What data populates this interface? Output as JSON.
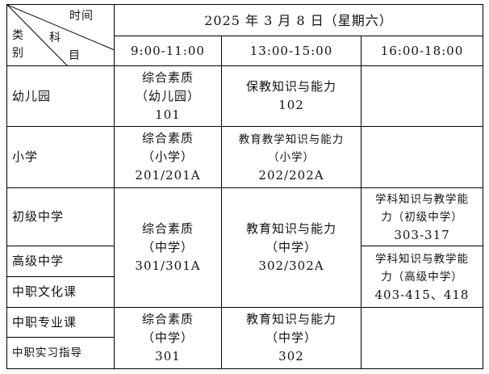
{
  "corner": {
    "time": "时间",
    "subject_1": "科",
    "subject_2": "目",
    "category_1": "类",
    "category_2": "别"
  },
  "date": "2025 年 3 月 8 日（星期六）",
  "slots": [
    "9:00-11:00",
    "13:00-15:00",
    "16:00-18:00"
  ],
  "categories": [
    "幼儿园",
    "小学",
    "初级中学",
    "高级中学",
    "中职文化课",
    "中职专业课",
    "中职实习指导"
  ],
  "cells": {
    "kg_1": [
      "综合素质",
      "（幼儿园）",
      "101"
    ],
    "kg_2": [
      "保教知识与能力",
      "102"
    ],
    "pri_1": [
      "综合素质",
      "（小学）",
      "201/201A"
    ],
    "pri_2": [
      "教育教学知识与能力",
      "（小学）",
      "202/202A"
    ],
    "mid_1": [
      "综合素质",
      "（中学）",
      "301/301A"
    ],
    "mid_2": [
      "教育知识与能力",
      "（中学）",
      "302/302A"
    ],
    "jun_3": [
      "学科知识与教学能",
      "力（初级中学）",
      "303-317"
    ],
    "sen_3": [
      "学科知识与教学能",
      "力（高级中学）",
      "403-415、418"
    ],
    "voc_1": [
      "综合素质",
      "（中学）",
      "301"
    ],
    "voc_2": [
      "教育知识与能力",
      "（中学）",
      "302"
    ]
  }
}
